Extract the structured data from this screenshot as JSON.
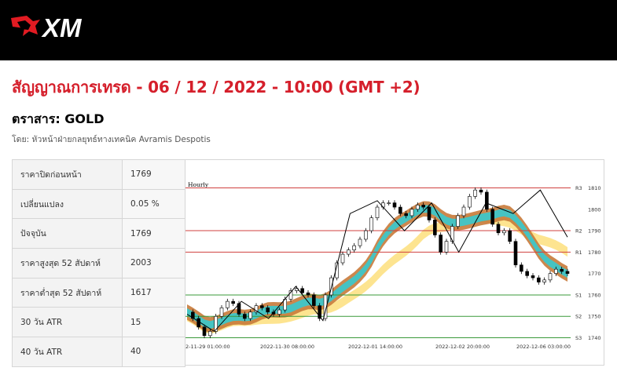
{
  "brand": {
    "logo_text": "XM"
  },
  "header": {
    "title": "สัญญาณการเทรด - 06 / 12 / 2022 - 10:00 (GMT +2)",
    "instrument": "ตราสาร: GOLD",
    "author": "โดย: หัวหน้าฝ่ายกลยุทธ์ทางเทคนิค Avramis Despotis"
  },
  "stats": [
    {
      "label": "ราคาปิดก่อนหน้า",
      "value": "1769"
    },
    {
      "label": "เปลี่ยนแปลง",
      "value": "0.05 %"
    },
    {
      "label": "ปัจจุบัน",
      "value": "1769"
    },
    {
      "label": "ราคาสูงสุด 52 สัปดาห์",
      "value": "2003"
    },
    {
      "label": "ราคาต่ำสุด 52 สัปดาห์",
      "value": "1617"
    },
    {
      "label": "30 วัน ATR",
      "value": "15"
    },
    {
      "label": "40 วัน ATR",
      "value": "40"
    }
  ],
  "chart_data": {
    "type": "candlestick",
    "timeframe_label": "Hourly",
    "x_tick_labels": [
      "2-11-29 01:00:00",
      "2022-11-30 08:00:00",
      "2022-12-01 14:00:00",
      "2022-12-02 20:00:00",
      "2022-12-06 03:00:00"
    ],
    "y_ticks": [
      1740,
      1750,
      1760,
      1770,
      1780,
      1790,
      1800,
      1810
    ],
    "ylim": [
      1738,
      1812
    ],
    "grid": false,
    "levels": [
      {
        "name": "R3",
        "value": 1810,
        "color": "#d0403f"
      },
      {
        "name": "R2",
        "value": 1790,
        "color": "#d0403f"
      },
      {
        "name": "R1",
        "value": 1780,
        "color": "#d0403f"
      },
      {
        "name": "S1",
        "value": 1760,
        "color": "#3a9a3a"
      },
      {
        "name": "S2",
        "value": 1750,
        "color": "#3a9a3a"
      },
      {
        "name": "S3",
        "value": 1740,
        "color": "#3a9a3a"
      }
    ],
    "bands": [
      {
        "name": "yellow",
        "color": "#fde38a"
      },
      {
        "name": "teal",
        "color": "#3ec6c8"
      },
      {
        "name": "brown",
        "color": "#c87a3a"
      }
    ],
    "price_path": [
      1752,
      1749,
      1745,
      1741,
      1743,
      1750,
      1754,
      1757,
      1756,
      1751,
      1749,
      1752,
      1755,
      1754,
      1752,
      1751,
      1753,
      1758,
      1762,
      1763,
      1761,
      1760,
      1755,
      1749,
      1760,
      1768,
      1775,
      1779,
      1781,
      1783,
      1786,
      1790,
      1796,
      1801,
      1803,
      1803,
      1801,
      1798,
      1797,
      1800,
      1802,
      1801,
      1795,
      1788,
      1780,
      1785,
      1792,
      1797,
      1801,
      1806,
      1809,
      1808,
      1800,
      1793,
      1789,
      1790,
      1785,
      1774,
      1771,
      1769,
      1768,
      1766,
      1767,
      1770,
      1772,
      1771,
      1770
    ],
    "zigzag": [
      1751,
      1743,
      1757,
      1749,
      1764,
      1748,
      1798,
      1804,
      1790,
      1803,
      1780,
      1803,
      1798,
      1809,
      1787
    ]
  }
}
